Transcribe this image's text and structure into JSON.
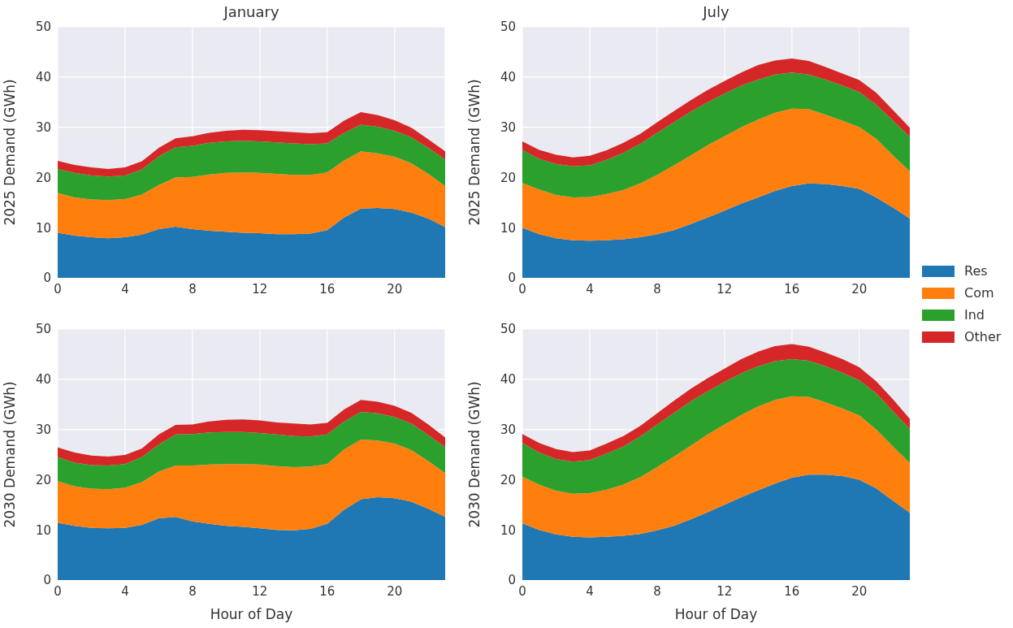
{
  "chart_data": [
    {
      "type": "area",
      "stacked": true,
      "title": "January",
      "ylabel": "2025 Demand (GWh)",
      "x": [
        0,
        1,
        2,
        3,
        4,
        5,
        6,
        7,
        8,
        9,
        10,
        11,
        12,
        13,
        14,
        15,
        16,
        17,
        18,
        19,
        20,
        21,
        22,
        23
      ],
      "xlim": [
        0,
        23
      ],
      "xticks": [
        0,
        4,
        8,
        12,
        16,
        20
      ],
      "ylim": [
        0,
        50
      ],
      "yticks": [
        0,
        10,
        20,
        30,
        40,
        50
      ],
      "grid": true,
      "legend": "right",
      "series": [
        {
          "name": "Res",
          "color": "#1f77b4",
          "values": [
            9.0,
            8.4,
            8.1,
            7.9,
            8.1,
            8.6,
            9.7,
            10.2,
            9.7,
            9.4,
            9.2,
            9.0,
            8.9,
            8.7,
            8.7,
            8.8,
            9.5,
            12.0,
            13.8,
            13.9,
            13.7,
            13.0,
            11.8,
            10.1
          ]
        },
        {
          "name": "Com",
          "color": "#ff7f0e",
          "values": [
            7.9,
            7.6,
            7.5,
            7.6,
            7.6,
            8.0,
            8.8,
            9.8,
            10.4,
            11.2,
            11.7,
            12.0,
            12.0,
            12.0,
            11.8,
            11.7,
            11.5,
            11.4,
            11.4,
            10.9,
            10.4,
            9.8,
            8.9,
            8.2
          ]
        },
        {
          "name": "Ind",
          "color": "#2ca02c",
          "values": [
            4.8,
            4.9,
            4.8,
            4.7,
            4.7,
            5.0,
            5.7,
            6.0,
            6.2,
            6.3,
            6.3,
            6.3,
            6.3,
            6.3,
            6.3,
            6.1,
            5.8,
            5.5,
            5.3,
            5.3,
            5.2,
            5.2,
            5.2,
            5.3
          ]
        },
        {
          "name": "Other",
          "color": "#d62728",
          "values": [
            1.6,
            1.6,
            1.6,
            1.5,
            1.6,
            1.6,
            1.7,
            1.8,
            1.9,
            2.0,
            2.1,
            2.2,
            2.2,
            2.2,
            2.2,
            2.2,
            2.2,
            2.4,
            2.5,
            2.3,
            2.1,
            1.9,
            1.7,
            1.6
          ]
        }
      ]
    },
    {
      "type": "area",
      "stacked": true,
      "title": "July",
      "ylabel": "2025 Demand (GWh)",
      "x": [
        0,
        1,
        2,
        3,
        4,
        5,
        6,
        7,
        8,
        9,
        10,
        11,
        12,
        13,
        14,
        15,
        16,
        17,
        18,
        19,
        20,
        21,
        22,
        23
      ],
      "xlim": [
        0,
        23
      ],
      "xticks": [
        0,
        4,
        8,
        12,
        16,
        20
      ],
      "ylim": [
        0,
        50
      ],
      "yticks": [
        0,
        10,
        20,
        30,
        40,
        50
      ],
      "grid": true,
      "series": [
        {
          "color": "#1f77b4",
          "values": [
            10.0,
            8.7,
            7.9,
            7.5,
            7.4,
            7.5,
            7.7,
            8.1,
            8.7,
            9.5,
            10.7,
            12.0,
            13.4,
            14.8,
            16.0,
            17.3,
            18.3,
            18.8,
            18.7,
            18.3,
            17.7,
            16.0,
            14.0,
            11.8
          ]
        },
        {
          "color": "#ff7f0e",
          "values": [
            8.9,
            8.9,
            8.6,
            8.5,
            8.7,
            9.2,
            9.8,
            10.7,
            11.8,
            12.9,
            13.7,
            14.4,
            14.8,
            15.2,
            15.5,
            15.6,
            15.4,
            14.8,
            13.8,
            13.0,
            12.3,
            11.7,
            10.4,
            9.4
          ]
        },
        {
          "color": "#2ca02c",
          "values": [
            6.6,
            6.1,
            6.2,
            6.2,
            6.3,
            6.8,
            7.4,
            7.9,
            8.4,
            8.6,
            8.7,
            8.6,
            8.5,
            8.3,
            8.0,
            7.6,
            7.2,
            6.9,
            7.0,
            7.0,
            7.0,
            6.8,
            6.9,
            6.9
          ]
        },
        {
          "color": "#d62728",
          "values": [
            1.7,
            1.8,
            1.8,
            1.8,
            1.9,
            1.9,
            2.0,
            2.0,
            2.1,
            2.2,
            2.3,
            2.4,
            2.5,
            2.6,
            2.9,
            2.8,
            2.8,
            2.7,
            2.5,
            2.4,
            2.4,
            2.4,
            2.1,
            1.8
          ]
        }
      ]
    },
    {
      "type": "area",
      "stacked": true,
      "xlabel": "Hour of Day",
      "ylabel": "2030 Demand (GWh)",
      "x": [
        0,
        1,
        2,
        3,
        4,
        5,
        6,
        7,
        8,
        9,
        10,
        11,
        12,
        13,
        14,
        15,
        16,
        17,
        18,
        19,
        20,
        21,
        22,
        23
      ],
      "xlim": [
        0,
        23
      ],
      "xticks": [
        0,
        4,
        8,
        12,
        16,
        20
      ],
      "ylim": [
        0,
        50
      ],
      "yticks": [
        0,
        10,
        20,
        30,
        40,
        50
      ],
      "grid": true,
      "series": [
        {
          "color": "#1f77b4",
          "values": [
            11.4,
            10.8,
            10.4,
            10.3,
            10.4,
            11.0,
            12.3,
            12.6,
            11.7,
            11.2,
            10.8,
            10.6,
            10.3,
            10.0,
            9.9,
            10.2,
            11.2,
            14.0,
            16.1,
            16.5,
            16.3,
            15.6,
            14.2,
            12.6
          ]
        },
        {
          "color": "#ff7f0e",
          "values": [
            8.3,
            7.9,
            7.8,
            7.8,
            8.0,
            8.5,
            9.3,
            10.2,
            11.1,
            11.8,
            12.3,
            12.5,
            12.7,
            12.7,
            12.6,
            12.4,
            11.9,
            12.0,
            11.9,
            11.3,
            10.9,
            10.3,
            9.5,
            8.7
          ]
        },
        {
          "color": "#2ca02c",
          "values": [
            4.8,
            4.7,
            4.7,
            4.7,
            4.7,
            5.0,
            5.4,
            6.2,
            6.3,
            6.4,
            6.4,
            6.4,
            6.3,
            6.3,
            6.2,
            6.0,
            5.9,
            5.6,
            5.5,
            5.4,
            5.3,
            5.3,
            5.2,
            5.2
          ]
        },
        {
          "color": "#d62728",
          "values": [
            1.9,
            2.0,
            1.9,
            1.8,
            1.8,
            1.7,
            2.0,
            1.9,
            1.9,
            2.2,
            2.4,
            2.5,
            2.5,
            2.4,
            2.5,
            2.4,
            2.3,
            2.4,
            2.4,
            2.3,
            2.2,
            2.1,
            2.1,
            1.9
          ]
        }
      ]
    },
    {
      "type": "area",
      "stacked": true,
      "xlabel": "Hour of Day",
      "ylabel": "2030 Demand (GWh)",
      "x": [
        0,
        1,
        2,
        3,
        4,
        5,
        6,
        7,
        8,
        9,
        10,
        11,
        12,
        13,
        14,
        15,
        16,
        17,
        18,
        19,
        20,
        21,
        22,
        23
      ],
      "xlim": [
        0,
        23
      ],
      "xticks": [
        0,
        4,
        8,
        12,
        16,
        20
      ],
      "ylim": [
        0,
        50
      ],
      "yticks": [
        0,
        10,
        20,
        30,
        40,
        50
      ],
      "grid": true,
      "series": [
        {
          "color": "#1f77b4",
          "values": [
            11.3,
            10.0,
            9.1,
            8.6,
            8.5,
            8.6,
            8.8,
            9.2,
            9.9,
            10.8,
            12.1,
            13.5,
            15.0,
            16.5,
            17.9,
            19.2,
            20.4,
            21.0,
            21.0,
            20.7,
            20.0,
            18.3,
            15.8,
            13.4
          ]
        },
        {
          "color": "#ff7f0e",
          "values": [
            9.3,
            9.0,
            8.7,
            8.6,
            8.8,
            9.4,
            10.2,
            11.3,
            12.6,
            13.8,
            14.7,
            15.5,
            16.0,
            16.4,
            16.7,
            16.7,
            16.2,
            15.5,
            14.4,
            13.5,
            12.8,
            11.7,
            10.8,
            9.9
          ]
        },
        {
          "color": "#2ca02c",
          "values": [
            6.7,
            6.4,
            6.3,
            6.4,
            6.6,
            7.2,
            7.6,
            8.1,
            8.5,
            8.7,
            8.8,
            8.6,
            8.5,
            8.3,
            8.0,
            7.7,
            7.4,
            7.2,
            7.2,
            7.1,
            7.0,
            7.2,
            7.0,
            6.8
          ]
        },
        {
          "color": "#d62728",
          "values": [
            1.8,
            1.9,
            2.0,
            1.9,
            1.9,
            2.0,
            2.1,
            2.1,
            2.2,
            2.4,
            2.5,
            2.6,
            2.6,
            2.8,
            2.9,
            3.0,
            3.0,
            2.8,
            2.7,
            2.7,
            2.6,
            2.4,
            2.4,
            2.0
          ]
        }
      ]
    }
  ]
}
